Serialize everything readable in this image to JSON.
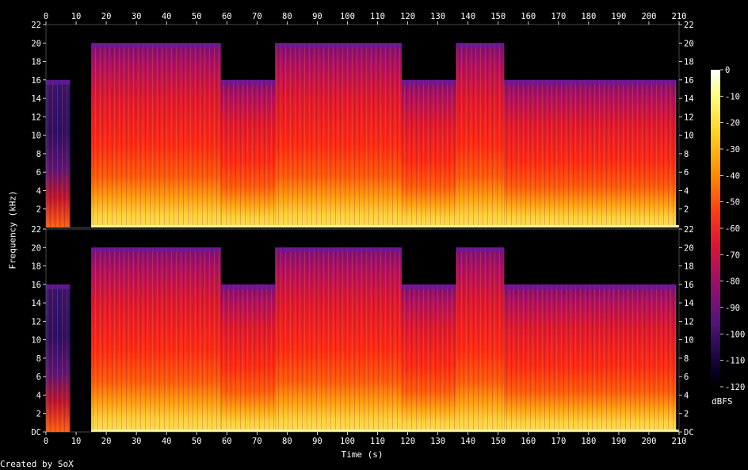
{
  "chart_data": {
    "type": "heatmap",
    "subtype": "spectrogram",
    "credit": "Created by SoX",
    "xlabel": "Time (s)",
    "ylabel": "Frequency (kHz)",
    "colorbar_label": "dBFS",
    "xlim": [
      0,
      210
    ],
    "ylim_khz": [
      0,
      22
    ],
    "x_ticks": [
      0,
      10,
      20,
      30,
      40,
      50,
      60,
      70,
      80,
      90,
      100,
      110,
      120,
      130,
      140,
      150,
      160,
      170,
      180,
      190,
      200,
      210
    ],
    "top_y_ticks": [
      "22",
      "20",
      "18",
      "16",
      "14",
      "12",
      "10",
      "8",
      "6",
      "4",
      "2"
    ],
    "bottom_y_ticks": [
      "22",
      "20",
      "18",
      "16",
      "14",
      "12",
      "10",
      "8",
      "6",
      "4",
      "2",
      "DC"
    ],
    "colorbar_ticks": [
      "0",
      "-10",
      "-20",
      "-30",
      "-40",
      "-50",
      "-60",
      "-70",
      "-80",
      "-90",
      "-100",
      "-110",
      "-120"
    ],
    "channels": 2,
    "bandwidth_segments_khz": [
      {
        "t0": 0,
        "t1": 8,
        "cutoff": 16
      },
      {
        "t0": 8,
        "t1": 15,
        "cutoff": 0
      },
      {
        "t0": 15,
        "t1": 58,
        "cutoff": 20
      },
      {
        "t0": 58,
        "t1": 76,
        "cutoff": 16
      },
      {
        "t0": 76,
        "t1": 118,
        "cutoff": 20
      },
      {
        "t0": 118,
        "t1": 136,
        "cutoff": 16
      },
      {
        "t0": 136,
        "t1": 152,
        "cutoff": 20
      },
      {
        "t0": 152,
        "t1": 209,
        "cutoff": 16
      }
    ],
    "colormap": [
      "#ffffff",
      "#ffff80",
      "#ffd21e",
      "#ff8a00",
      "#ff3c14",
      "#e01432",
      "#b40f5a",
      "#820f78",
      "#501478",
      "#280a50",
      "#0a0028",
      "#000000"
    ]
  }
}
